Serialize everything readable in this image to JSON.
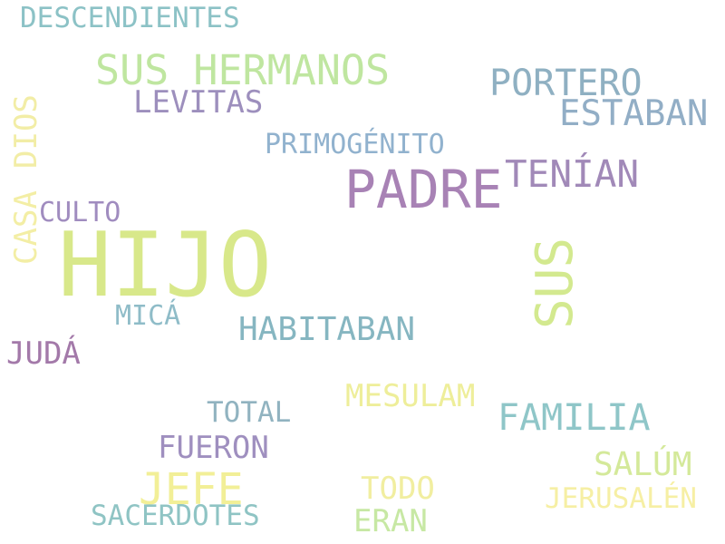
{
  "words": {
    "hijo": {
      "text": "HIJO",
      "color": "#d8e88a"
    },
    "padre": {
      "text": "PADRE",
      "color": "#a882b5"
    },
    "sus_hermanos": {
      "text": "SUS HERMANOS",
      "color": "#bfe6a0"
    },
    "sus": {
      "text": "SUS",
      "color": "#d3e98f"
    },
    "portero": {
      "text": "PORTERO",
      "color": "#8fb0c2"
    },
    "estaban": {
      "text": "ESTABAN",
      "color": "#92aec6"
    },
    "tenian": {
      "text": "TENÍAN",
      "color": "#a189b8"
    },
    "jefe": {
      "text": "JEFE",
      "color": "#f2ef97"
    },
    "levitas": {
      "text": "LEVITAS",
      "color": "#9d8fbd"
    },
    "descendientes": {
      "text": "DESCENDIENTES",
      "color": "#8cc2c6"
    },
    "primogenito": {
      "text": "PRIMOGÉNITO",
      "color": "#91b2ce"
    },
    "habitaban": {
      "text": "HABITABAN",
      "color": "#86b6c1"
    },
    "familia": {
      "text": "FAMILIA",
      "color": "#8fc6c8"
    },
    "mesulam": {
      "text": "MESULAM",
      "color": "#eeee9a"
    },
    "fueron": {
      "text": "FUERON",
      "color": "#9f8fbf"
    },
    "salum": {
      "text": "SALÚM",
      "color": "#d4e99a"
    },
    "todo": {
      "text": "TODO",
      "color": "#f1eea0"
    },
    "culto": {
      "text": "CULTO",
      "color": "#a08cbf"
    },
    "mica": {
      "text": "MICÁ",
      "color": "#8fbcc8"
    },
    "juda": {
      "text": "JUDÁ",
      "color": "#a379a9"
    },
    "total": {
      "text": "TOTAL",
      "color": "#91b3c0"
    },
    "sacerdotes": {
      "text": "SACERDOTES",
      "color": "#8fc4c4"
    },
    "eran": {
      "text": "ERAN",
      "color": "#c7e8a4"
    },
    "jerusalen": {
      "text": "JERUSALÉN",
      "color": "#f6efa4"
    },
    "dios": {
      "text": "DIOS",
      "color": "#f2eda6"
    },
    "casa": {
      "text": "CASA",
      "color": "#f3eea5"
    }
  }
}
